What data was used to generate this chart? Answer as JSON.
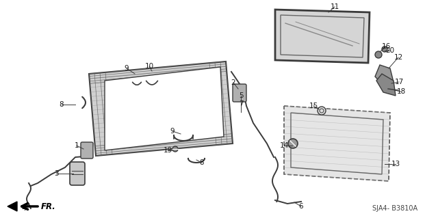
{
  "bg_color": "#ffffff",
  "diagram_code": "SJA4- B3810A",
  "line_color": "#3a3a3a",
  "label_color": "#1a1a1a",
  "part_fill": "#c8c8c8",
  "part_fill_light": "#e0e0e0",
  "part_fill_dark": "#a0a0a0",
  "label_fontsize": 7.5,
  "fr_text": "FR."
}
